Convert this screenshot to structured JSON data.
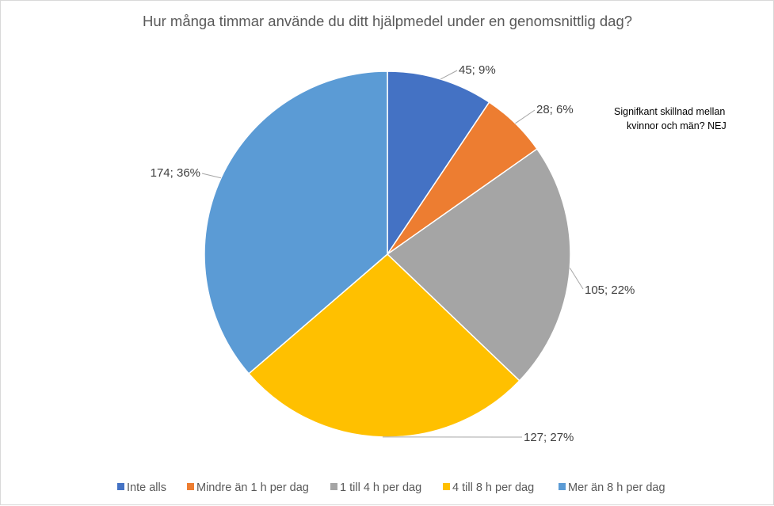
{
  "chart_data": {
    "type": "pie",
    "title": "Hur många timmar använde du ditt hjälpmedel under en genomsnittlig dag?",
    "categories": [
      "Inte alls",
      "Mindre än 1 h per dag",
      "1 till 4 h per dag",
      "4 till 8 h per dag",
      "Mer än 8 h per dag"
    ],
    "values": [
      45,
      28,
      105,
      127,
      174
    ],
    "percentages": [
      9,
      6,
      22,
      27,
      36
    ],
    "data_labels": [
      "45; 9%",
      "28; 6%",
      "105; 22%",
      "127; 27%",
      "174; 36%"
    ],
    "colors": [
      "#4472C4",
      "#ED7D31",
      "#A5A5A5",
      "#FFC000",
      "#5B9BD5"
    ],
    "legend_position": "bottom",
    "annotation": [
      "Signifkant skillnad mellan",
      "kvinnor och män? NEJ"
    ]
  }
}
